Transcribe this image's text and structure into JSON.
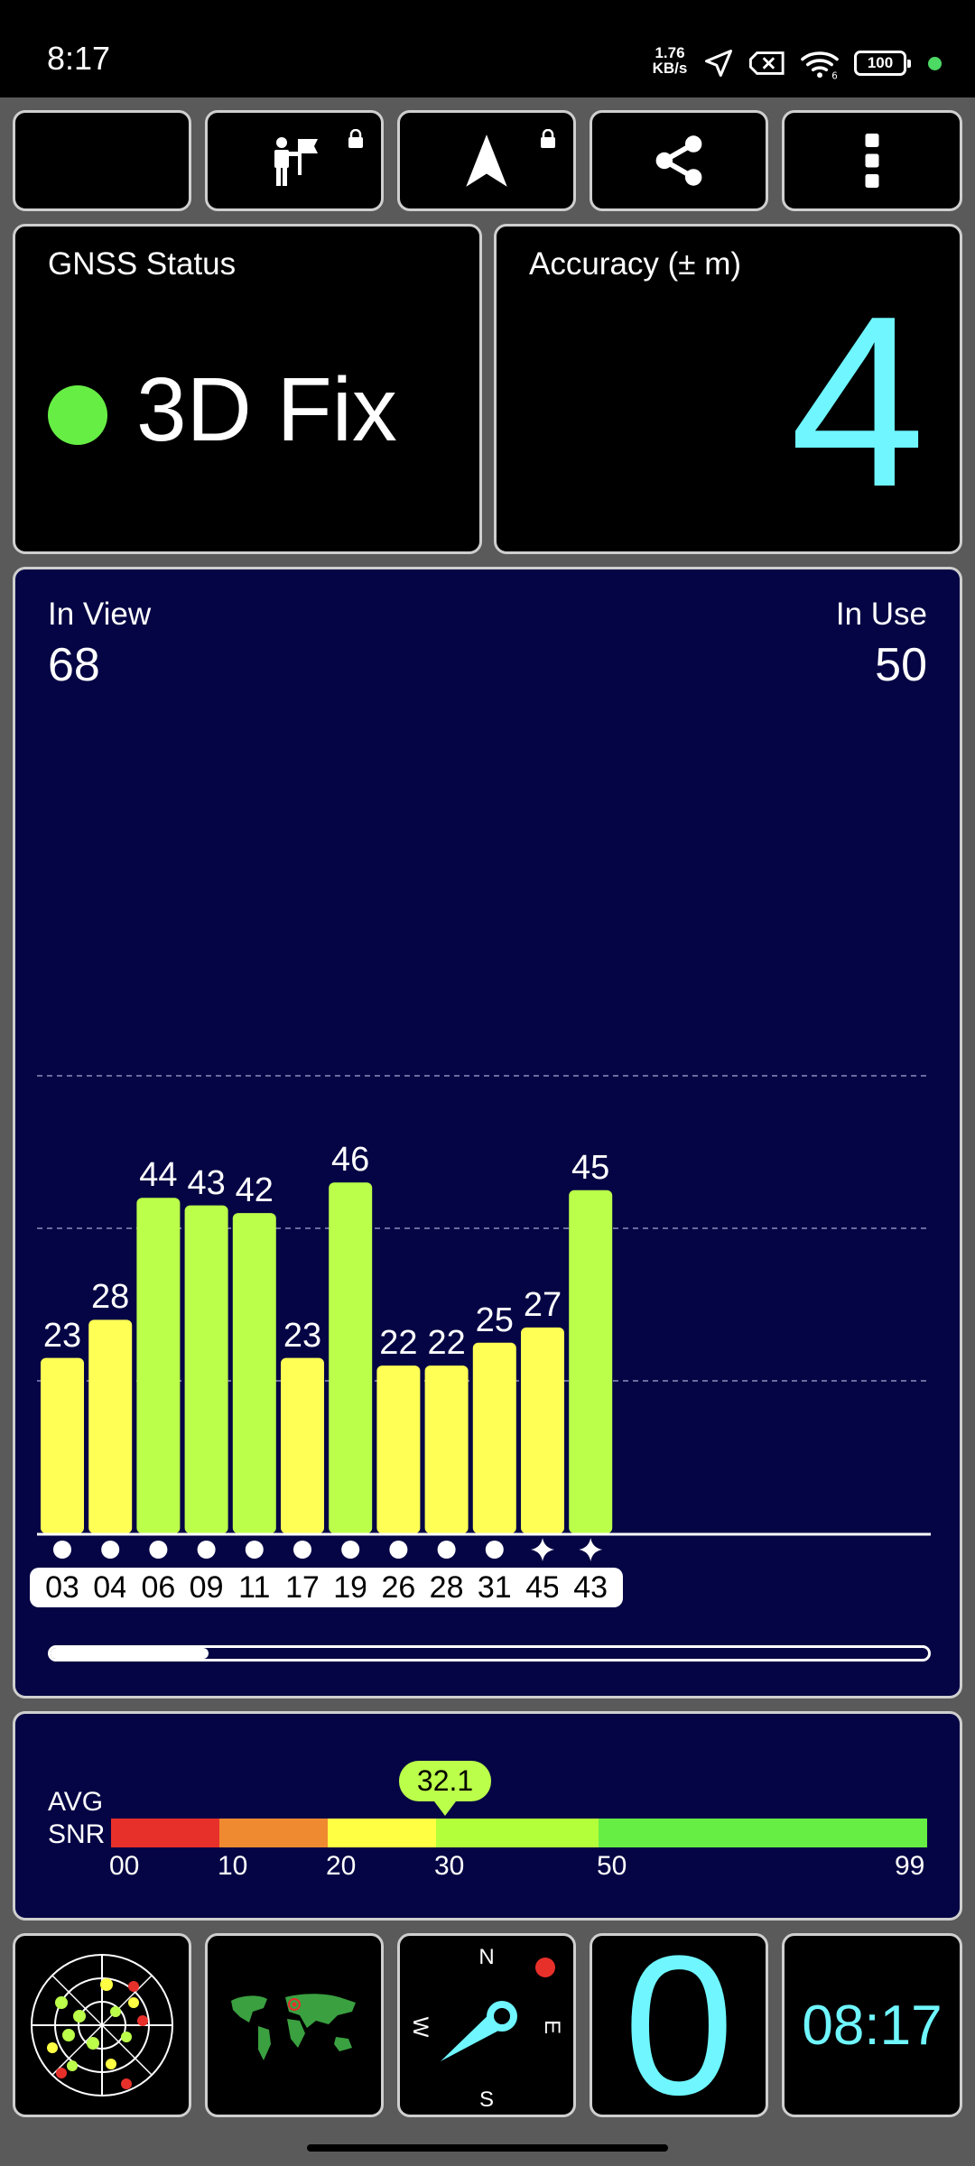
{
  "status_bar": {
    "time": "8:17",
    "net_speed_value": "1.76",
    "net_speed_unit": "KB/s",
    "battery": "100",
    "icons": [
      "location-arrow-icon",
      "sim-x-icon",
      "wifi-6-icon",
      "battery-icon"
    ]
  },
  "toolbar": {
    "buttons": [
      "night-mode-icon",
      "marker-flag-icon",
      "navigation-arrow-icon",
      "share-icon",
      "more-vert-icon"
    ]
  },
  "gnss": {
    "title": "GNSS Status",
    "fix": "3D Fix",
    "fix_color": "#66ee44"
  },
  "accuracy": {
    "title": "Accuracy (± m)",
    "value": "4"
  },
  "satellites": {
    "in_view_label": "In View",
    "in_view": "68",
    "in_use_label": "In Use",
    "in_use": "50"
  },
  "chart_data": {
    "type": "bar",
    "categories": [
      "03",
      "04",
      "06",
      "09",
      "11",
      "17",
      "19",
      "26",
      "28",
      "31",
      "45",
      "43"
    ],
    "values": [
      23,
      28,
      44,
      43,
      42,
      23,
      46,
      22,
      22,
      25,
      27,
      45
    ],
    "constellation_marks": [
      "dot",
      "dot",
      "dot",
      "dot",
      "dot",
      "dot",
      "dot",
      "dot",
      "dot",
      "dot",
      "star",
      "star"
    ],
    "ylim": [
      0,
      60
    ],
    "gridlines": [
      20,
      40,
      60
    ],
    "colors": {
      "weak": "#ffff55",
      "strong": "#bbff4a"
    },
    "scroll_fraction": 0.18
  },
  "snr": {
    "label_top": "AVG",
    "label_bottom": "SNR",
    "avg": "32.1",
    "avg_value": 32.1,
    "scale_max": 99,
    "segments": [
      {
        "from": 0,
        "to": 10,
        "color": "#e8302a"
      },
      {
        "from": 10,
        "to": 20,
        "color": "#f08a30"
      },
      {
        "from": 20,
        "to": 30,
        "color": "#ffff44"
      },
      {
        "from": 30,
        "to": 50,
        "color": "#b3ff3a"
      },
      {
        "from": 50,
        "to": 99,
        "color": "#66ee44"
      }
    ],
    "ticks": [
      "00",
      "10",
      "20",
      "30",
      "50",
      "99"
    ]
  },
  "bottom_tiles": {
    "radar": "sky-plot-icon",
    "map": "world-map-icon",
    "compass": {
      "n": "N",
      "e": "E",
      "s": "S",
      "w": "W"
    },
    "zero_value": "0",
    "clock": "08:17"
  }
}
